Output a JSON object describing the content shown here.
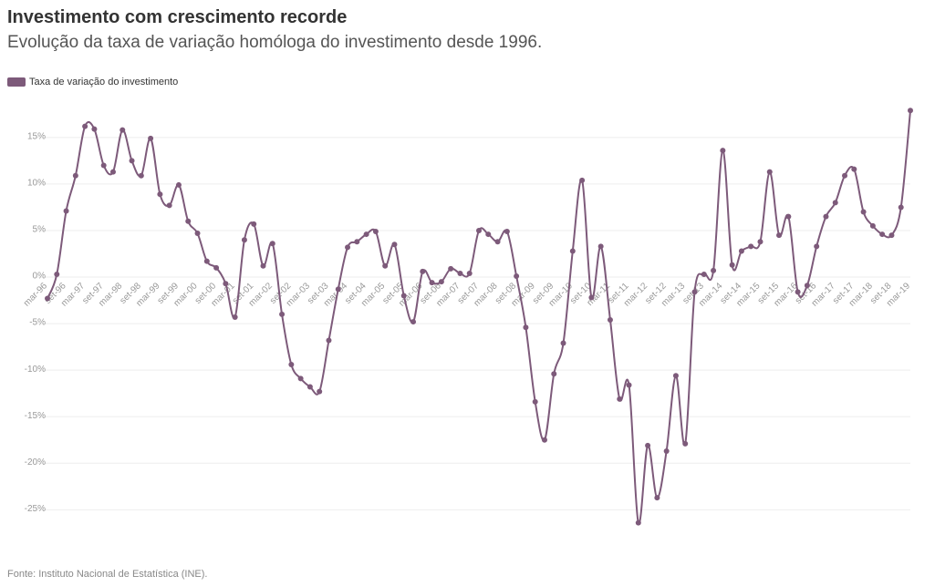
{
  "chart_data": {
    "type": "line",
    "title": "Investimento com crescimento recorde",
    "subtitle": "Evolução da taxa de variação homóloga do investimento desde 1996.",
    "source": "Fonte: Instituto Nacional de Estatística (INE).",
    "categories": [
      "mar-96",
      null,
      "set-96",
      null,
      "mar-97",
      null,
      "set-97",
      null,
      "mar-98",
      null,
      "set-98",
      null,
      "mar-99",
      null,
      "set-99",
      null,
      "mar-00",
      null,
      "set-00",
      null,
      "mar-01",
      null,
      "set-01",
      null,
      "mar-02",
      null,
      "set-02",
      null,
      "mar-03",
      null,
      "set-03",
      null,
      "mar-04",
      null,
      "set-04",
      null,
      "mar-05",
      null,
      "set-05",
      null,
      "mar-06",
      null,
      "set-06",
      null,
      "mar-07",
      null,
      "set-07",
      null,
      "mar-08",
      null,
      "set-08",
      null,
      "mar-09",
      null,
      "set-09",
      null,
      "mar-10",
      null,
      "set-10",
      null,
      "mar-11",
      null,
      "set-11",
      null,
      "mar-12",
      null,
      "set-12",
      null,
      "mar-13",
      null,
      "set-13",
      null,
      "mar-14",
      null,
      "set-14",
      null,
      "mar-15",
      null,
      "set-15",
      null,
      "mar-16",
      null,
      "set-16",
      null,
      "mar-17",
      null,
      "set-17",
      null,
      "mar-18",
      null,
      "set-18",
      null,
      "mar-19"
    ],
    "series": [
      {
        "name": "Taxa de variação do investimento",
        "color": "#7d5a7a",
        "values": [
          -2.3,
          0.3,
          7.1,
          10.9,
          16.2,
          15.9,
          12.0,
          11.3,
          15.8,
          12.5,
          10.9,
          14.9,
          8.9,
          7.7,
          9.9,
          6.0,
          4.7,
          1.7,
          1.0,
          -0.7,
          -4.3,
          4.0,
          5.7,
          1.2,
          3.6,
          -4.0,
          -9.4,
          -10.9,
          -11.8,
          -12.3,
          -6.8,
          -1.3,
          3.2,
          3.8,
          4.6,
          4.9,
          1.2,
          3.5,
          -2.0,
          -4.8,
          0.6,
          -0.6,
          -0.5,
          0.9,
          0.4,
          0.4,
          5.0,
          4.6,
          3.8,
          4.9,
          0.1,
          -5.4,
          -13.4,
          -17.5,
          -10.4,
          -7.1,
          2.8,
          10.4,
          -2.2,
          3.3,
          -4.6,
          -13.1,
          -11.6,
          -26.4,
          -18.1,
          -23.7,
          -18.7,
          -10.6,
          -17.9,
          -1.6,
          0.3,
          0.7,
          13.6,
          1.3,
          2.8,
          3.3,
          3.8,
          11.3,
          4.5,
          6.5,
          -1.6,
          -0.9,
          3.3,
          6.5,
          8.0,
          10.9,
          11.6,
          7.0,
          5.5,
          4.6,
          4.5,
          7.5,
          17.9
        ]
      }
    ],
    "ylim": [
      -28,
      19
    ],
    "yticks": [
      {
        "value": -25,
        "label": "-25%"
      },
      {
        "value": -20,
        "label": "-20%"
      },
      {
        "value": -15,
        "label": "-15%"
      },
      {
        "value": -10,
        "label": "-10%"
      },
      {
        "value": -5,
        "label": "-5%"
      },
      {
        "value": 0,
        "label": "0%"
      },
      {
        "value": 5,
        "label": "5%"
      },
      {
        "value": 10,
        "label": "10%"
      },
      {
        "value": 15,
        "label": "15%"
      }
    ],
    "grid": true
  }
}
